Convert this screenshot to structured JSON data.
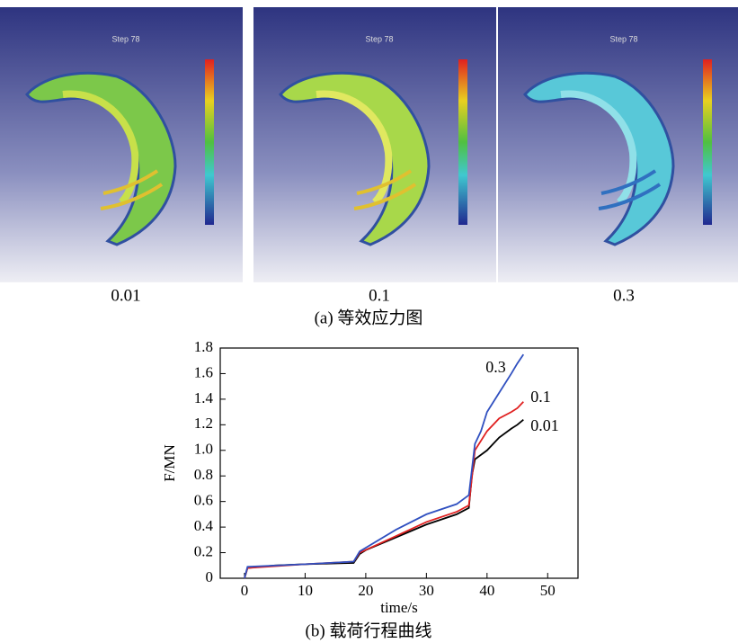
{
  "panels": [
    {
      "step": "Step 78",
      "label": "0.01"
    },
    {
      "step": "Step 78",
      "label": "0.1"
    },
    {
      "step": "Step 78",
      "label": "0.3"
    }
  ],
  "caption_a": "(a)  等效应力图",
  "chart_data": {
    "type": "line",
    "xlabel": "time/s",
    "ylabel": "F/MN",
    "caption": "(b)  载荷行程曲线",
    "xlim": [
      -4,
      55
    ],
    "ylim": [
      0,
      1.8
    ],
    "xticks": [
      0,
      10,
      20,
      30,
      40,
      50
    ],
    "yticks": [
      0,
      0.2,
      0.4,
      0.6,
      0.8,
      {
        "value": 1,
        "label": "1.0"
      },
      1.2,
      1.4,
      1.6,
      1.8
    ],
    "series": [
      {
        "name": "0.01",
        "color": "#000000",
        "x": [
          0,
          0.5,
          5,
          10,
          18,
          19,
          20,
          25,
          30,
          35,
          37,
          37.5,
          38,
          40,
          42,
          44,
          45,
          46
        ],
        "values": [
          0,
          0.08,
          0.1,
          0.11,
          0.12,
          0.19,
          0.22,
          0.32,
          0.42,
          0.5,
          0.55,
          0.8,
          0.93,
          1.0,
          1.1,
          1.17,
          1.2,
          1.24
        ]
      },
      {
        "name": "0.1",
        "color": "#e02020",
        "x": [
          0,
          0.5,
          10,
          18,
          19,
          25,
          30,
          35,
          37,
          38,
          40,
          42,
          44,
          45,
          46
        ],
        "values": [
          0,
          0.08,
          0.11,
          0.13,
          0.2,
          0.33,
          0.44,
          0.52,
          0.57,
          1.0,
          1.15,
          1.25,
          1.3,
          1.33,
          1.38
        ]
      },
      {
        "name": "0.3",
        "color": "#3050c0",
        "x": [
          0,
          0.5,
          10,
          18,
          19,
          25,
          30,
          35,
          37,
          38,
          39,
          40,
          42,
          44,
          45,
          46
        ],
        "values": [
          0,
          0.09,
          0.11,
          0.13,
          0.21,
          0.38,
          0.5,
          0.58,
          0.65,
          1.05,
          1.15,
          1.3,
          1.45,
          1.6,
          1.68,
          1.75
        ]
      }
    ]
  }
}
